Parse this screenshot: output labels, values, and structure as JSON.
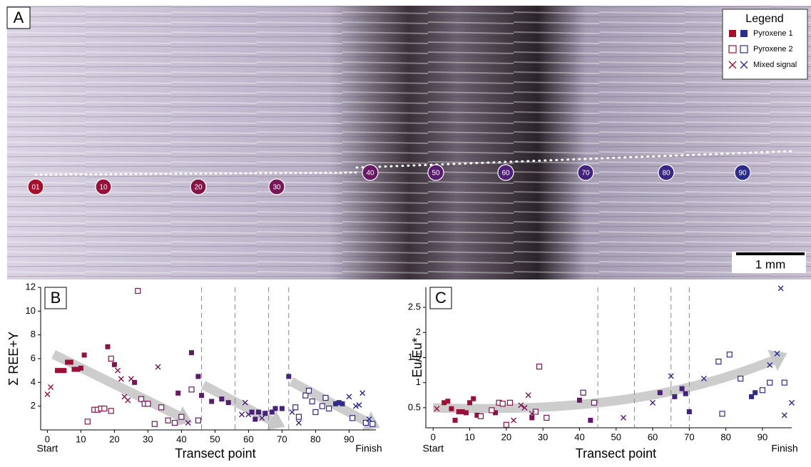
{
  "panel_a": {
    "label": "A",
    "legend_title": "Legend",
    "scale_bar": "1 mm",
    "points": [
      "01",
      "10",
      "20",
      "30",
      "40",
      "50",
      "60",
      "70",
      "80",
      "90"
    ]
  },
  "chart_data": [
    {
      "type": "scatter",
      "label": "B",
      "ylabel": "Σ REE+Y",
      "xlabel": "Transect point",
      "start_label": "Start",
      "finish_label": "Finish",
      "xlim": [
        -2,
        98
      ],
      "ylim": [
        0,
        12
      ],
      "xticks": [
        0,
        10,
        20,
        30,
        40,
        50,
        60,
        70,
        80,
        90
      ],
      "yticks": [
        2,
        4,
        6,
        8,
        10,
        12
      ],
      "vlines": [
        46,
        56,
        66,
        72
      ],
      "color_scale": [
        "#a50f2d",
        "#5e1a6c",
        "#2d2b8c"
      ],
      "series": [
        {
          "name": "Pyroxene 1",
          "marker": "square-filled",
          "x": [
            3,
            4,
            5,
            6,
            7,
            8,
            9,
            10,
            11,
            18,
            20,
            26,
            39,
            43,
            45,
            46,
            49,
            52,
            54,
            61,
            62,
            63,
            65,
            67,
            68,
            70,
            72,
            86,
            87,
            88
          ],
          "values": [
            5.0,
            5.0,
            5.0,
            5.7,
            5.7,
            5.1,
            5.1,
            5.2,
            6.3,
            7.0,
            5.5,
            4.0,
            3.1,
            6.5,
            4.5,
            2.9,
            2.4,
            2.6,
            2.3,
            1.5,
            0.9,
            1.5,
            1.4,
            1.5,
            1.8,
            1.8,
            4.5,
            2.2,
            2.3,
            2.2
          ]
        },
        {
          "name": "Pyroxene 2",
          "marker": "square-open",
          "x": [
            12,
            14,
            15,
            16,
            17,
            19,
            19,
            27,
            28,
            29,
            30,
            32,
            34,
            36,
            38,
            40,
            43,
            45,
            74,
            75,
            77,
            78,
            79,
            80,
            82,
            83,
            84,
            91,
            95,
            97
          ],
          "values": [
            0.7,
            1.7,
            1.7,
            1.8,
            1.8,
            1.6,
            6.0,
            11.7,
            2.6,
            2.2,
            2.2,
            0.5,
            1.9,
            0.8,
            0.6,
            1.1,
            3.4,
            0.8,
            1.9,
            1.1,
            2.9,
            3.3,
            2.4,
            1.5,
            2.0,
            2.7,
            1.8,
            1.0,
            0.6,
            0.5
          ]
        },
        {
          "name": "Mixed signal",
          "marker": "x",
          "x": [
            0,
            1,
            21,
            22,
            23,
            24,
            25,
            33,
            42,
            58,
            59,
            60,
            64,
            73,
            75,
            90,
            92,
            93,
            94,
            96
          ],
          "values": [
            3.0,
            3.6,
            5.0,
            4.3,
            2.8,
            2.5,
            4.3,
            5.3,
            0.6,
            1.3,
            2.3,
            1.3,
            1.0,
            1.5,
            0.6,
            2.8,
            2.0,
            2.1,
            3.1,
            0.9
          ]
        }
      ]
    },
    {
      "type": "scatter",
      "label": "C",
      "ylabel": "Eu/Eu*",
      "xlabel": "Transect point",
      "start_label": "Start",
      "finish_label": "Finish",
      "xlim": [
        -2,
        98
      ],
      "ylim": [
        0.1,
        2.9
      ],
      "xticks": [
        0,
        10,
        20,
        30,
        40,
        50,
        60,
        70,
        80,
        90
      ],
      "yticks": [
        0.5,
        1.0,
        1.5,
        2.0,
        2.5
      ],
      "vlines": [
        45,
        55,
        65,
        70
      ],
      "color_scale": [
        "#a50f2d",
        "#5e1a6c",
        "#2d2b8c"
      ],
      "series": [
        {
          "name": "Pyroxene 1",
          "marker": "square-filled",
          "x": [
            3,
            4,
            5,
            6,
            7,
            8,
            9,
            10,
            11,
            12,
            17,
            27,
            40,
            43,
            62,
            66,
            68,
            69,
            70,
            87,
            88
          ],
          "values": [
            0.6,
            0.63,
            0.48,
            0.25,
            0.42,
            0.42,
            0.4,
            0.6,
            0.68,
            0.35,
            0.4,
            0.3,
            0.65,
            0.25,
            0.8,
            0.72,
            0.88,
            0.78,
            0.42,
            0.72,
            0.8
          ]
        },
        {
          "name": "Pyroxene 2",
          "marker": "square-open",
          "x": [
            13,
            16,
            18,
            19,
            20,
            21,
            28,
            29,
            31,
            41,
            44,
            78,
            79,
            81,
            84,
            90,
            92,
            96
          ],
          "values": [
            0.33,
            0.45,
            0.6,
            0.58,
            0.16,
            0.6,
            0.42,
            1.32,
            0.3,
            0.8,
            0.6,
            1.42,
            0.38,
            1.56,
            1.08,
            0.85,
            1.0,
            1.0
          ]
        },
        {
          "name": "Mixed signal",
          "marker": "x",
          "x": [
            1,
            22,
            24,
            25,
            26,
            27,
            52,
            60,
            65,
            74,
            92,
            94,
            95,
            96,
            98
          ],
          "values": [
            0.48,
            0.25,
            0.55,
            0.5,
            0.75,
            0.38,
            0.3,
            0.6,
            1.13,
            1.08,
            1.35,
            1.58,
            2.88,
            0.35,
            0.6
          ]
        }
      ]
    }
  ]
}
